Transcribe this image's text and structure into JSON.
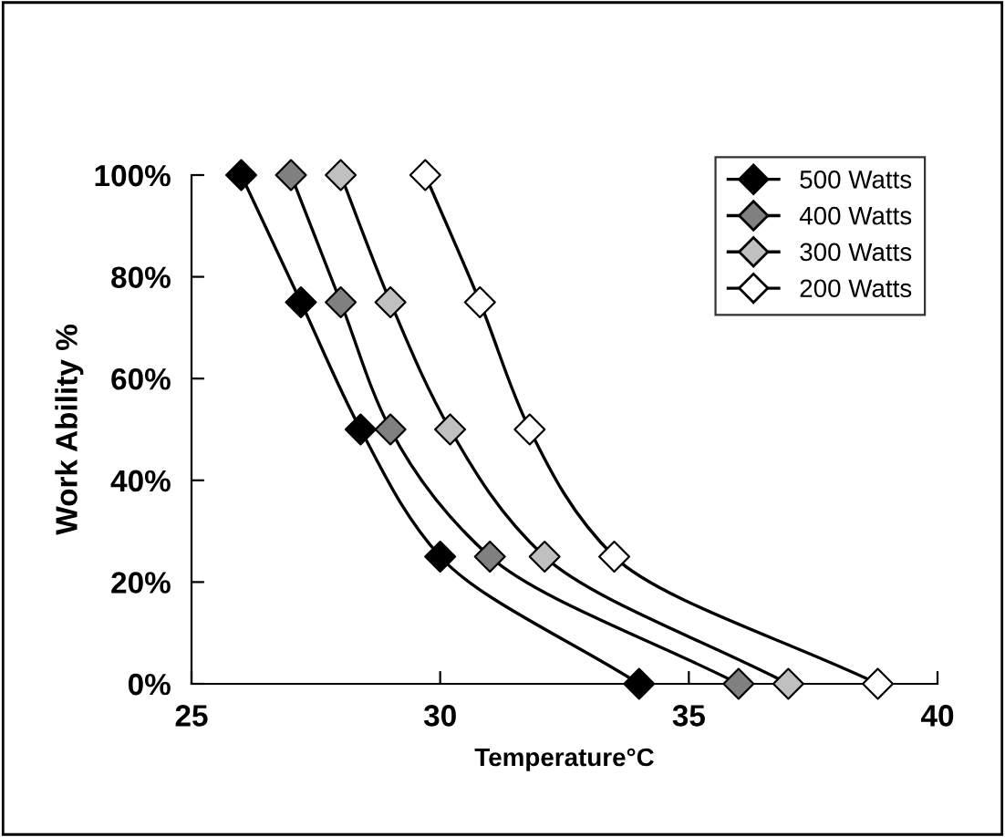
{
  "chart_data": {
    "type": "line",
    "xlabel": "Temperature°C",
    "ylabel": "Work Ability %",
    "xlim": [
      25,
      40
    ],
    "xticks": [
      25,
      30,
      35,
      40
    ],
    "ylim": [
      0,
      100
    ],
    "yticks": [
      {
        "value": 0,
        "label": "0%"
      },
      {
        "value": 20,
        "label": "20%"
      },
      {
        "value": 40,
        "label": "40%"
      },
      {
        "value": 60,
        "label": "60%"
      },
      {
        "value": 80,
        "label": "80%"
      },
      {
        "value": 100,
        "label": "100%"
      }
    ],
    "grid": false,
    "legend": "top right",
    "marker": "diamond",
    "line_style": "solid",
    "series": [
      {
        "name": "500 Watts",
        "color": "#000000",
        "x": [
          26.0,
          27.2,
          28.4,
          30.0,
          34.0
        ],
        "values": [
          100,
          75,
          50,
          25,
          0
        ]
      },
      {
        "name": "400 Watts",
        "color": "#808080",
        "x": [
          27.0,
          28.0,
          29.0,
          31.0,
          36.0
        ],
        "values": [
          100,
          75,
          50,
          25,
          0
        ]
      },
      {
        "name": "300 Watts",
        "color": "#c0c0c0",
        "x": [
          28.0,
          29.0,
          30.2,
          32.1,
          37.0
        ],
        "values": [
          100,
          75,
          50,
          25,
          0
        ]
      },
      {
        "name": "200 Watts",
        "color": "#ffffff",
        "x": [
          29.7,
          30.8,
          31.8,
          33.5,
          38.8
        ],
        "values": [
          100,
          75,
          50,
          25,
          0
        ]
      }
    ]
  }
}
